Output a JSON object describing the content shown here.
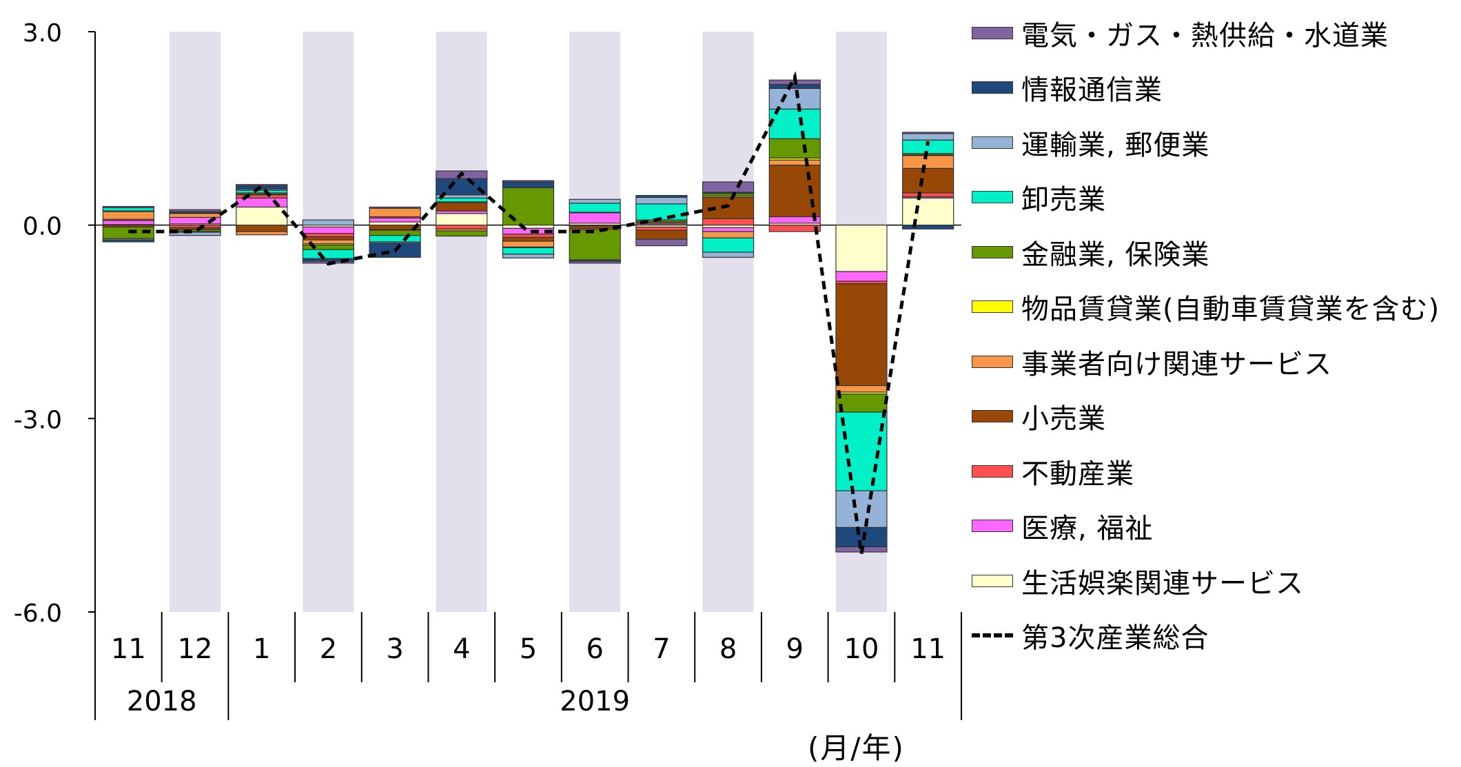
{
  "chart_data": {
    "type": "bar",
    "stacked": true,
    "x_axis": {
      "months": [
        "11",
        "12",
        "1",
        "2",
        "3",
        "4",
        "5",
        "6",
        "7",
        "8",
        "9",
        "10",
        "11"
      ],
      "years": [
        {
          "label": "2018",
          "span": [
            0,
            1
          ]
        },
        {
          "label": "2019",
          "span": [
            2,
            12
          ]
        }
      ]
    },
    "unit_label": "(月/年)",
    "y_axis": {
      "ylim": [
        -6.0,
        3.0
      ],
      "ticks": [
        "3.0",
        "0.0",
        "-3.0",
        "-6.0"
      ],
      "tick_values": [
        3.0,
        0.0,
        -3.0,
        -6.0
      ]
    },
    "shaded_months_index": [
      1,
      3,
      5,
      7,
      9,
      11
    ],
    "shade_color": "#e4dfec",
    "series": [
      {
        "name": "電気・ガス・熱供給・水道業",
        "color": "#8064a2",
        "values": [
          0.02,
          0.03,
          0.02,
          -0.03,
          0.02,
          0.12,
          0.02,
          -0.03,
          -0.1,
          0.16,
          0.07,
          -0.08,
          0.02
        ]
      },
      {
        "name": "情報通信業",
        "color": "#1f497d",
        "values": [
          -0.03,
          0.02,
          0.05,
          -0.04,
          -0.22,
          0.25,
          0.09,
          -0.02,
          0.03,
          0.02,
          0.06,
          -0.3,
          -0.06
        ]
      },
      {
        "name": "運輸業, 郵便業",
        "color": "#95b3d7",
        "values": [
          -0.02,
          -0.05,
          0.02,
          0.08,
          -0.02,
          0.05,
          -0.06,
          0.06,
          0.1,
          -0.08,
          0.32,
          -0.57,
          0.1
        ]
      },
      {
        "name": "卸売業",
        "color": "#00f0c8",
        "values": [
          0.05,
          -0.01,
          0.04,
          -0.14,
          -0.1,
          0.06,
          -0.1,
          0.14,
          0.25,
          -0.22,
          0.46,
          -1.22,
          0.21
        ]
      },
      {
        "name": "金融業, 保険業",
        "color": "#669900",
        "values": [
          -0.18,
          -0.03,
          0.02,
          -0.07,
          -0.08,
          -0.08,
          0.58,
          -0.47,
          0.03,
          0.04,
          0.3,
          -0.28,
          0.02
        ]
      },
      {
        "name": "物品賃貸業(自動車賃貸業を含む)",
        "color": "#ffff00",
        "values": [
          0.01,
          0.01,
          0.01,
          -0.02,
          -0.01,
          0.01,
          -0.01,
          0.01,
          0.01,
          0.02,
          0.03,
          -0.03,
          0.01
        ]
      },
      {
        "name": "事業者向け関連サービス",
        "color": "#f79646",
        "values": [
          0.12,
          0.06,
          -0.05,
          -0.06,
          0.13,
          -0.03,
          -0.09,
          -0.02,
          0.02,
          -0.1,
          0.08,
          -0.1,
          0.2
        ]
      },
      {
        "name": "小売業",
        "color": "#974706",
        "values": [
          -0.03,
          -0.03,
          -0.1,
          -0.05,
          -0.07,
          0.13,
          -0.06,
          -0.04,
          -0.14,
          0.33,
          0.8,
          -1.58,
          0.38
        ]
      },
      {
        "name": "不動産業",
        "color": "#ff4f4f",
        "values": [
          0.02,
          -0.04,
          0.05,
          -0.05,
          0.02,
          -0.06,
          -0.05,
          -0.01,
          -0.05,
          0.1,
          -0.1,
          -0.04,
          0.06
        ]
      },
      {
        "name": "医療, 福祉",
        "color": "#ff66ff",
        "values": [
          0.06,
          0.1,
          0.14,
          -0.1,
          0.06,
          0.04,
          -0.09,
          0.16,
          0.02,
          -0.06,
          0.1,
          -0.15,
          0.02
        ]
      },
      {
        "name": "生活娯楽関連サービス",
        "color": "#ffffcc",
        "values": [
          0.01,
          0.02,
          0.28,
          -0.03,
          0.05,
          0.18,
          -0.05,
          0.03,
          -0.03,
          -0.04,
          0.03,
          -0.72,
          0.42
        ]
      }
    ],
    "line": {
      "name": "第3次産業総合",
      "values": [
        -0.1,
        -0.1,
        0.6,
        -0.6,
        -0.4,
        0.8,
        -0.1,
        -0.1,
        0.1,
        0.3,
        2.3,
        -5.1,
        1.3
      ]
    }
  }
}
